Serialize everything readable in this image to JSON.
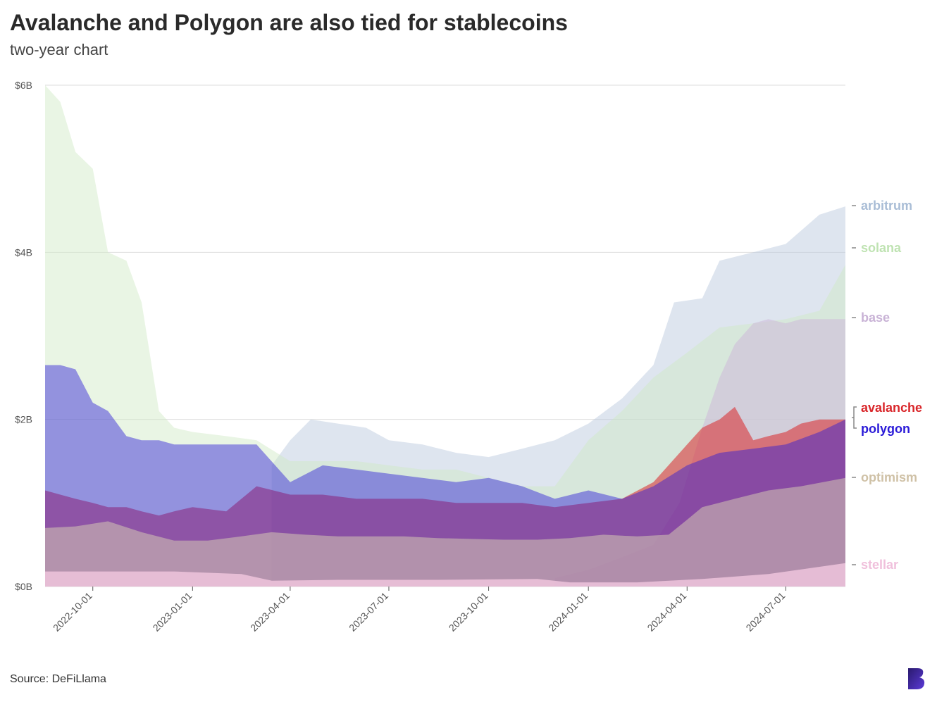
{
  "title": "Avalanche and Polygon are also tied for stablecoins",
  "subtitle": "two-year chart",
  "source": "Source: DeFiLlama",
  "colors": {
    "arbitrum": "#b6c6dc",
    "solana": "#cfe8c4",
    "base": "#cdb9d8",
    "avalanche": "#d9262a",
    "polygon": "#2a1ad8",
    "optimism": "#d3c6b2",
    "stellar": "#efc4dc"
  },
  "chart_data": {
    "type": "area",
    "title": "Avalanche and Polygon are also tied for stablecoins",
    "subtitle": "two-year chart",
    "y_unit": "USD billions",
    "ylim": [
      0,
      6
    ],
    "y_ticks": [
      0,
      2,
      4,
      6
    ],
    "y_tick_labels": [
      "$0B",
      "$2B",
      "$4B",
      "$6B"
    ],
    "xlim": [
      "2022-08-18",
      "2024-08-25"
    ],
    "x_ticks": [
      "2022-10-01",
      "2023-01-01",
      "2023-04-01",
      "2023-07-01",
      "2023-10-01",
      "2024-01-01",
      "2024-04-01",
      "2024-07-01"
    ],
    "grid": true,
    "legend": "right, end-of-series labels",
    "series": [
      {
        "name": "arbitrum",
        "color": "#b6c6dc",
        "opacity": 0.45,
        "x": [
          "2023-03-15",
          "2023-04-01",
          "2023-04-20",
          "2023-05-15",
          "2023-06-10",
          "2023-07-01",
          "2023-08-01",
          "2023-09-01",
          "2023-10-01",
          "2023-11-01",
          "2023-12-01",
          "2024-01-01",
          "2024-02-01",
          "2024-03-01",
          "2024-03-20",
          "2024-04-15",
          "2024-05-01",
          "2024-06-01",
          "2024-07-01",
          "2024-08-01",
          "2024-08-25"
        ],
        "values": [
          1.45,
          1.75,
          2.0,
          1.95,
          1.9,
          1.75,
          1.7,
          1.6,
          1.55,
          1.65,
          1.75,
          1.95,
          2.25,
          2.65,
          3.4,
          3.45,
          3.9,
          4.0,
          4.1,
          4.45,
          4.55
        ]
      },
      {
        "name": "solana",
        "color": "#cfe8c4",
        "opacity": 0.45,
        "x": [
          "2022-08-18",
          "2022-09-01",
          "2022-09-15",
          "2022-10-01",
          "2022-10-15",
          "2022-11-01",
          "2022-11-15",
          "2022-12-01",
          "2022-12-15",
          "2023-01-01",
          "2023-02-01",
          "2023-03-01",
          "2023-04-01",
          "2023-05-01",
          "2023-06-01",
          "2023-07-01",
          "2023-08-01",
          "2023-09-01",
          "2023-10-01",
          "2023-11-01",
          "2023-12-01",
          "2024-01-01",
          "2024-02-01",
          "2024-03-01",
          "2024-04-01",
          "2024-05-01",
          "2024-06-01",
          "2024-07-01",
          "2024-08-01",
          "2024-08-25"
        ],
        "values": [
          6.0,
          5.8,
          5.2,
          5.0,
          4.0,
          3.9,
          3.4,
          2.1,
          1.9,
          1.85,
          1.8,
          1.75,
          1.5,
          1.5,
          1.5,
          1.45,
          1.4,
          1.4,
          1.3,
          1.2,
          1.2,
          1.75,
          2.1,
          2.5,
          2.8,
          3.1,
          3.15,
          3.2,
          3.3,
          3.85
        ]
      },
      {
        "name": "base",
        "color": "#cdb9d8",
        "opacity": 0.55,
        "x": [
          "2023-12-01",
          "2024-01-01",
          "2024-02-01",
          "2024-03-01",
          "2024-03-25",
          "2024-04-15",
          "2024-05-01",
          "2024-05-15",
          "2024-06-01",
          "2024-06-15",
          "2024-07-01",
          "2024-07-15",
          "2024-08-01",
          "2024-08-25"
        ],
        "values": [
          0.1,
          0.2,
          0.35,
          0.5,
          1.0,
          1.9,
          2.5,
          2.9,
          3.15,
          3.2,
          3.15,
          3.2,
          3.2,
          3.2
        ]
      },
      {
        "name": "avalanche",
        "color": "#d9262a",
        "opacity": 0.55,
        "x": [
          "2022-08-18",
          "2022-09-01",
          "2022-09-15",
          "2022-10-01",
          "2022-10-15",
          "2022-11-01",
          "2022-11-15",
          "2022-12-01",
          "2022-12-15",
          "2023-01-01",
          "2023-02-01",
          "2023-03-01",
          "2023-04-01",
          "2023-05-01",
          "2023-06-01",
          "2023-07-01",
          "2023-08-01",
          "2023-09-01",
          "2023-10-01",
          "2023-11-01",
          "2023-12-01",
          "2024-01-01",
          "2024-02-01",
          "2024-03-01",
          "2024-04-01",
          "2024-04-15",
          "2024-05-01",
          "2024-05-15",
          "2024-06-01",
          "2024-06-15",
          "2024-07-01",
          "2024-07-15",
          "2024-08-01",
          "2024-08-25"
        ],
        "values": [
          1.15,
          1.1,
          1.05,
          1.0,
          0.95,
          0.95,
          0.9,
          0.85,
          0.9,
          0.95,
          0.9,
          1.2,
          1.1,
          1.1,
          1.05,
          1.05,
          1.05,
          1.0,
          1.0,
          1.0,
          0.95,
          1.0,
          1.05,
          1.25,
          1.7,
          1.9,
          2.0,
          2.15,
          1.75,
          1.8,
          1.85,
          1.95,
          2.0,
          2.0
        ]
      },
      {
        "name": "polygon",
        "color": "#2a1ad8",
        "opacity": 0.45,
        "x": [
          "2022-08-18",
          "2022-09-01",
          "2022-09-15",
          "2022-10-01",
          "2022-10-15",
          "2022-11-01",
          "2022-11-15",
          "2022-12-01",
          "2022-12-15",
          "2023-01-01",
          "2023-02-01",
          "2023-03-01",
          "2023-04-01",
          "2023-05-01",
          "2023-06-01",
          "2023-07-01",
          "2023-08-01",
          "2023-09-01",
          "2023-10-01",
          "2023-11-01",
          "2023-12-01",
          "2024-01-01",
          "2024-02-01",
          "2024-03-01",
          "2024-04-01",
          "2024-05-01",
          "2024-06-01",
          "2024-07-01",
          "2024-08-01",
          "2024-08-25"
        ],
        "values": [
          2.65,
          2.65,
          2.6,
          2.2,
          2.1,
          1.8,
          1.75,
          1.75,
          1.7,
          1.7,
          1.7,
          1.7,
          1.25,
          1.45,
          1.4,
          1.35,
          1.3,
          1.25,
          1.3,
          1.2,
          1.05,
          1.15,
          1.05,
          1.2,
          1.45,
          1.6,
          1.65,
          1.7,
          1.85,
          2.0
        ]
      },
      {
        "name": "optimism",
        "color": "#d3c6b2",
        "opacity": 0.55,
        "x": [
          "2022-08-18",
          "2022-09-15",
          "2022-10-15",
          "2022-11-15",
          "2022-12-15",
          "2023-01-15",
          "2023-02-15",
          "2023-03-15",
          "2023-04-15",
          "2023-05-15",
          "2023-06-15",
          "2023-07-15",
          "2023-08-15",
          "2023-09-15",
          "2023-10-15",
          "2023-11-15",
          "2023-12-15",
          "2024-01-15",
          "2024-02-15",
          "2024-03-15",
          "2024-04-01",
          "2024-04-15",
          "2024-05-15",
          "2024-06-15",
          "2024-07-15",
          "2024-08-25"
        ],
        "values": [
          0.7,
          0.72,
          0.78,
          0.65,
          0.55,
          0.55,
          0.6,
          0.65,
          0.62,
          0.6,
          0.6,
          0.6,
          0.58,
          0.57,
          0.56,
          0.56,
          0.58,
          0.62,
          0.6,
          0.62,
          0.8,
          0.95,
          1.05,
          1.15,
          1.2,
          1.3
        ]
      },
      {
        "name": "stellar",
        "color": "#efc4dc",
        "opacity": 0.85,
        "x": [
          "2022-08-18",
          "2022-12-15",
          "2023-02-15",
          "2023-03-15",
          "2023-05-15",
          "2023-08-15",
          "2023-11-15",
          "2023-12-15",
          "2024-02-15",
          "2024-04-15",
          "2024-06-15",
          "2024-08-25"
        ],
        "values": [
          0.18,
          0.18,
          0.15,
          0.07,
          0.08,
          0.08,
          0.09,
          0.05,
          0.05,
          0.09,
          0.15,
          0.28
        ]
      }
    ],
    "labels": [
      "arbitrum",
      "solana",
      "base",
      "avalanche",
      "polygon",
      "optimism",
      "stellar"
    ]
  }
}
